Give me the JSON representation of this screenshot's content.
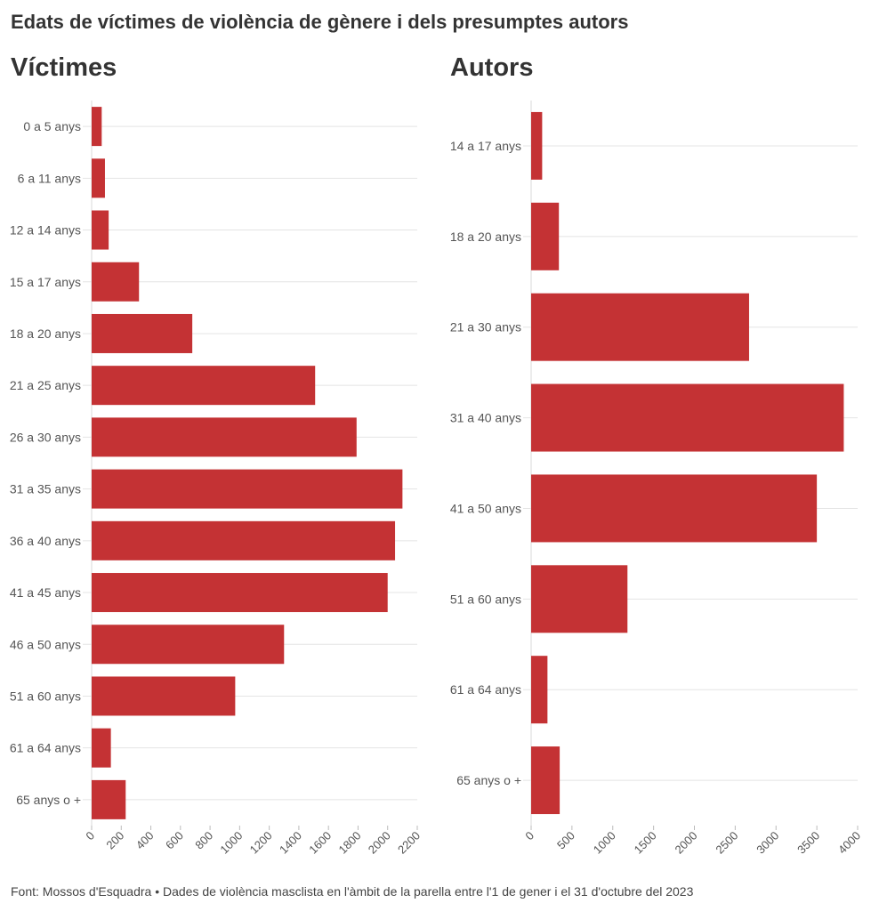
{
  "title": "Edats de víctimes de violència de gènere i dels presumptes autors",
  "colors": {
    "bar": "#c43234",
    "grid": "#e4e4e4",
    "text": "#555555"
  },
  "chart_data": [
    {
      "type": "bar",
      "orientation": "horizontal",
      "title": "Víctimes",
      "categories": [
        "0 a 5 anys",
        "6 a 11 anys",
        "12 a 14 anys",
        "15 a 17 anys",
        "18 a 20 anys",
        "21 a 25 anys",
        "26 a 30 anys",
        "31 a 35 anys",
        "36 a 40 anys",
        "41 a 45 anys",
        "46 a 50 anys",
        "51 a 60 anys",
        "61 a 64 anys",
        "65 anys o +"
      ],
      "values": [
        68,
        90,
        115,
        320,
        680,
        1510,
        1790,
        2100,
        2050,
        2000,
        1300,
        970,
        130,
        230
      ],
      "xlim": [
        0,
        2200
      ],
      "ticks": [
        "0",
        "200",
        "400",
        "600",
        "800",
        "1000",
        "1200",
        "1400",
        "1600",
        "1800",
        "2000",
        "2200"
      ],
      "grid": true
    },
    {
      "type": "bar",
      "orientation": "horizontal",
      "title": "Autors",
      "categories": [
        "14 a 17 anys",
        "18 a 20 anys",
        "21 a 30 anys",
        "31 a 40 anys",
        "41 a 50 anys",
        "51 a 60 anys",
        "61 a 64 anys",
        "65 anys o +"
      ],
      "values": [
        135,
        340,
        2670,
        3830,
        3500,
        1180,
        200,
        350
      ],
      "xlim": [
        0,
        4000
      ],
      "ticks": [
        "0",
        "500",
        "1000",
        "1500",
        "2000",
        "2500",
        "3000",
        "3500",
        "4000"
      ],
      "grid": true
    }
  ],
  "source": "Font: Mossos d'Esquadra • Dades de violència masclista en l'àmbit de la parella entre l'1 de gener i el 31 d'octubre del 2023"
}
